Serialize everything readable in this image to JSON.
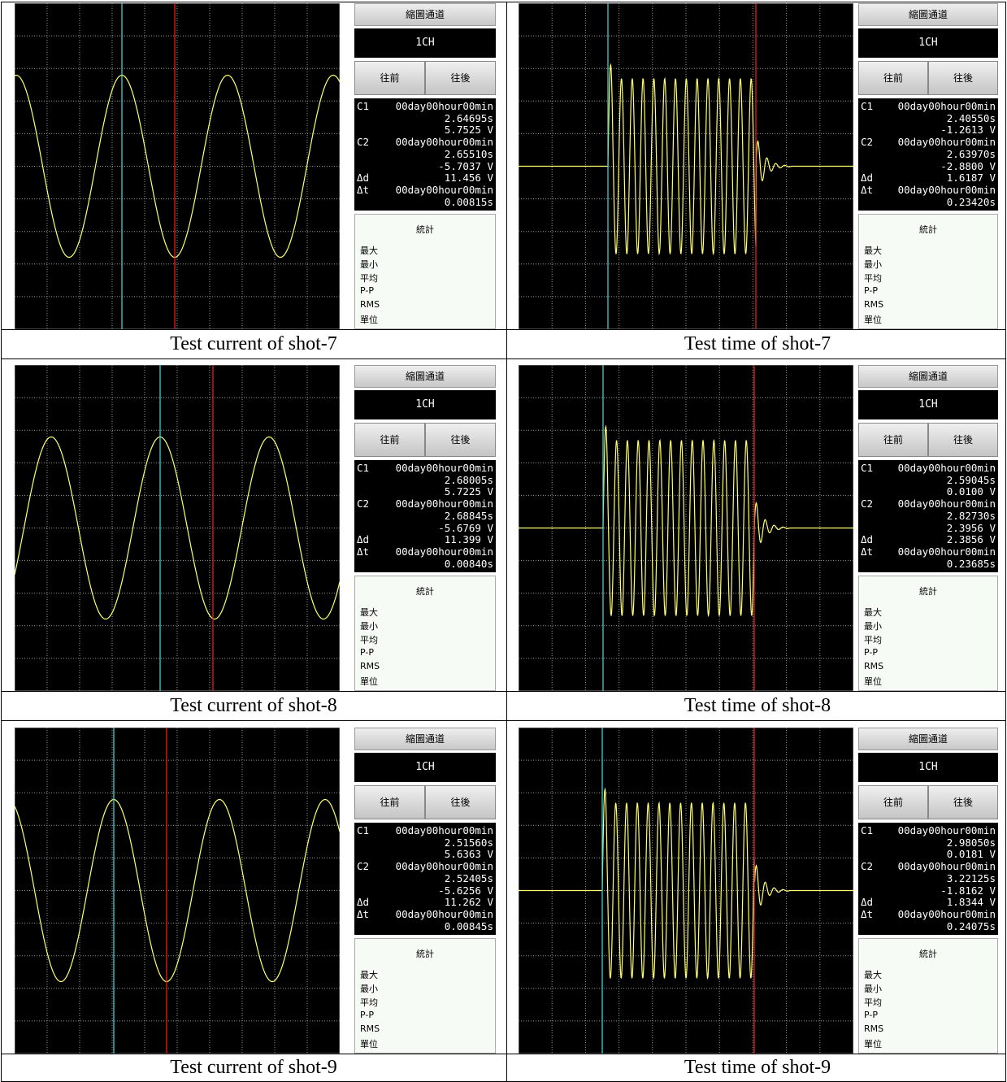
{
  "shared": {
    "channel_title": "縮圖通道",
    "channel": "1CH",
    "prev": "往前",
    "next": "往後",
    "stats_title": "統計",
    "stats_labels": [
      "最大",
      "最小",
      "平均",
      "P-P",
      "RMS",
      "單位"
    ]
  },
  "panels": [
    {
      "caption": "Test current of shot-7",
      "readout": {
        "c1": {
          "label": "C1",
          "time": "00day00hour00min",
          "seconds": "2.64695s",
          "volts": "5.7525 V"
        },
        "c2": {
          "label": "C2",
          "time": "00day00hour00min",
          "seconds": "2.65510s",
          "volts": "-5.7037 V"
        },
        "dd": {
          "label": "Δd",
          "value": "11.456 V"
        },
        "dt": {
          "label": "Δt",
          "time": "00day00hour00min",
          "seconds": "0.00815s"
        }
      }
    },
    {
      "caption": "Test time of shot-7",
      "readout": {
        "c1": {
          "label": "C1",
          "time": "00day00hour00min",
          "seconds": "2.40550s",
          "volts": "-1.2613 V"
        },
        "c2": {
          "label": "C2",
          "time": "00day00hour00min",
          "seconds": "2.63970s",
          "volts": "-2.8800 V"
        },
        "dd": {
          "label": "Δd",
          "value": "1.6187 V"
        },
        "dt": {
          "label": "Δt",
          "time": "00day00hour00min",
          "seconds": "0.23420s"
        }
      }
    },
    {
      "caption": "Test current of shot-8",
      "readout": {
        "c1": {
          "label": "C1",
          "time": "00day00hour00min",
          "seconds": "2.68005s",
          "volts": "5.7225 V"
        },
        "c2": {
          "label": "C2",
          "time": "00day00hour00min",
          "seconds": "2.68845s",
          "volts": "-5.6769 V"
        },
        "dd": {
          "label": "Δd",
          "value": "11.399 V"
        },
        "dt": {
          "label": "Δt",
          "time": "00day00hour00min",
          "seconds": "0.00840s"
        }
      }
    },
    {
      "caption": "Test time of shot-8",
      "readout": {
        "c1": {
          "label": "C1",
          "time": "00day00hour00min",
          "seconds": "2.59045s",
          "volts": "0.0100 V"
        },
        "c2": {
          "label": "C2",
          "time": "00day00hour00min",
          "seconds": "2.82730s",
          "volts": "2.3956 V"
        },
        "dd": {
          "label": "Δd",
          "value": "2.3856 V"
        },
        "dt": {
          "label": "Δt",
          "time": "00day00hour00min",
          "seconds": "0.23685s"
        }
      }
    },
    {
      "caption": "Test current of shot-9",
      "readout": {
        "c1": {
          "label": "C1",
          "time": "00day00hour00min",
          "seconds": "2.51560s",
          "volts": "5.6363 V"
        },
        "c2": {
          "label": "C2",
          "time": "00day00hour00min",
          "seconds": "2.52405s",
          "volts": "-5.6256 V"
        },
        "dd": {
          "label": "Δd",
          "value": "11.262 V"
        },
        "dt": {
          "label": "Δt",
          "time": "00day00hour00min",
          "seconds": "0.00845s"
        }
      }
    },
    {
      "caption": "Test time of shot-9",
      "readout": {
        "c1": {
          "label": "C1",
          "time": "00day00hour00min",
          "seconds": "2.98050s",
          "volts": "0.0181 V"
        },
        "c2": {
          "label": "C2",
          "time": "00day00hour00min",
          "seconds": "3.22125s",
          "volts": "-1.8162 V"
        },
        "dd": {
          "label": "Δd",
          "value": "1.8344 V"
        },
        "dt": {
          "label": "Δt",
          "time": "00day00hour00min",
          "seconds": "0.24075s"
        }
      }
    }
  ]
}
